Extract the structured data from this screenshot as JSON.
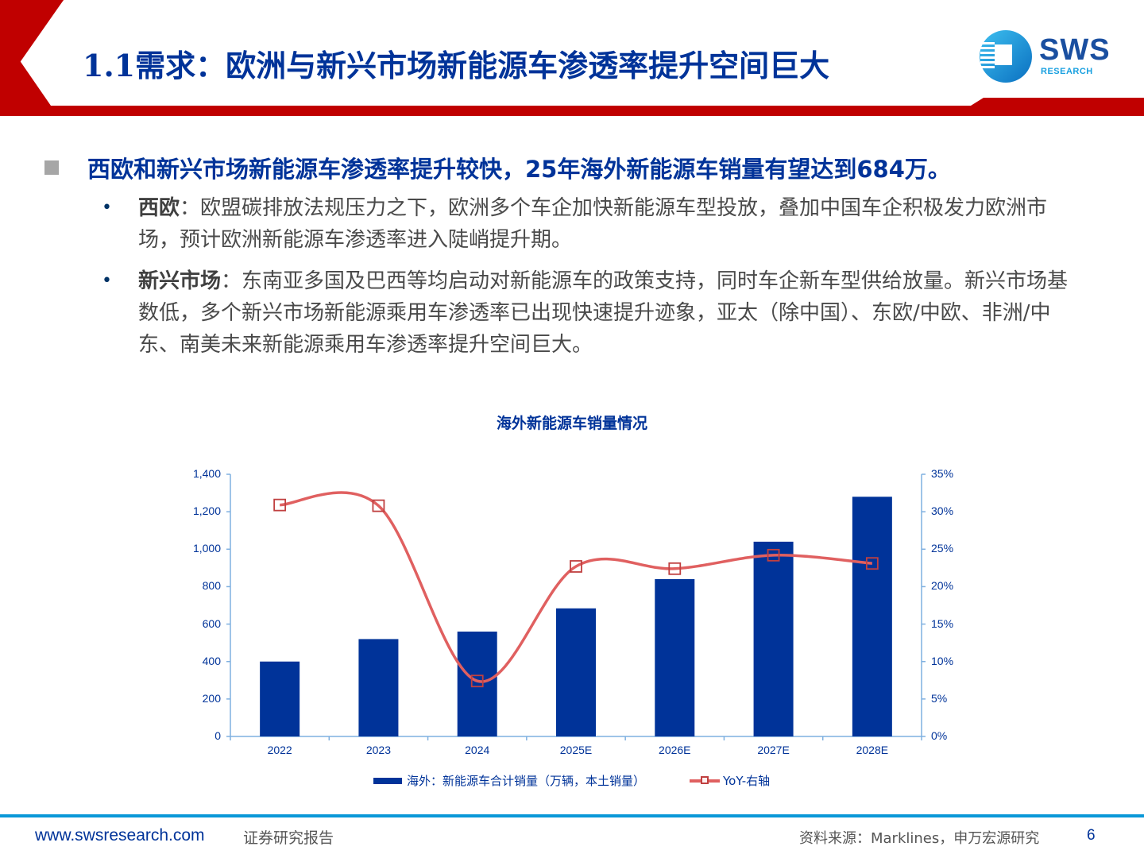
{
  "header": {
    "title": "1.1需求：欧洲与新兴市场新能源车渗透率提升空间巨大",
    "logo_text": "SWS",
    "logo_subtext": "RESEARCH",
    "accent_color": "#c00000",
    "title_color": "#003399"
  },
  "headline": {
    "text": "西欧和新兴市场新能源车渗透率提升较快，25年海外新能源车销量有望达到684万。"
  },
  "bullets": [
    {
      "label": "西欧",
      "text": "：欧盟碳排放法规压力之下，欧洲多个车企加快新能源车型投放，叠加中国车企积极发力欧洲市场，预计欧洲新能源车渗透率进入陡峭提升期。"
    },
    {
      "label": "新兴市场",
      "text": "：东南亚多国及巴西等均启动对新能源车的政策支持，同时车企新车型供给放量。新兴市场基数低，多个新兴市场新能源乘用车渗透率已出现快速提升迹象，亚太（除中国）、东欧/中欧、非洲/中东、南美未来新能源乘用车渗透率提升空间巨大。"
    }
  ],
  "chart_data": {
    "type": "bar",
    "title": "海外新能源车销量情况",
    "categories": [
      "2022",
      "2023",
      "2024",
      "2025E",
      "2026E",
      "2027E",
      "2028E"
    ],
    "series": [
      {
        "name": "海外：新能源车合计销量（万辆，本土销量）",
        "type": "bar",
        "axis": "left",
        "color": "#003399",
        "values": [
          400,
          520,
          560,
          684,
          840,
          1040,
          1280
        ]
      },
      {
        "name": "YoY-右轴",
        "type": "line",
        "axis": "right",
        "color": "#e06060",
        "marker": "square",
        "values": [
          30.9,
          30.8,
          7.4,
          22.7,
          22.4,
          24.2,
          23.1
        ]
      }
    ],
    "left_axis": {
      "min": 0,
      "max": 1400,
      "ticks": [
        "0",
        "200",
        "400",
        "600",
        "800",
        "1,000",
        "1,200",
        "1,400"
      ]
    },
    "right_axis": {
      "min": 0,
      "max": 35,
      "ticks": [
        "0%",
        "5%",
        "10%",
        "15%",
        "20%",
        "25%",
        "30%",
        "35%"
      ]
    },
    "xlabel": "",
    "ylabel": "",
    "grid": false,
    "legend_position": "bottom"
  },
  "legend": {
    "bar_label": "海外：新能源车合计销量（万辆，本土销量）",
    "line_label": "YoY-右轴"
  },
  "footer": {
    "url": "www.swsresearch.com",
    "doc_type": "证券研究报告",
    "source": "资料来源：Marklines，申万宏源研究",
    "page_number": "6"
  }
}
